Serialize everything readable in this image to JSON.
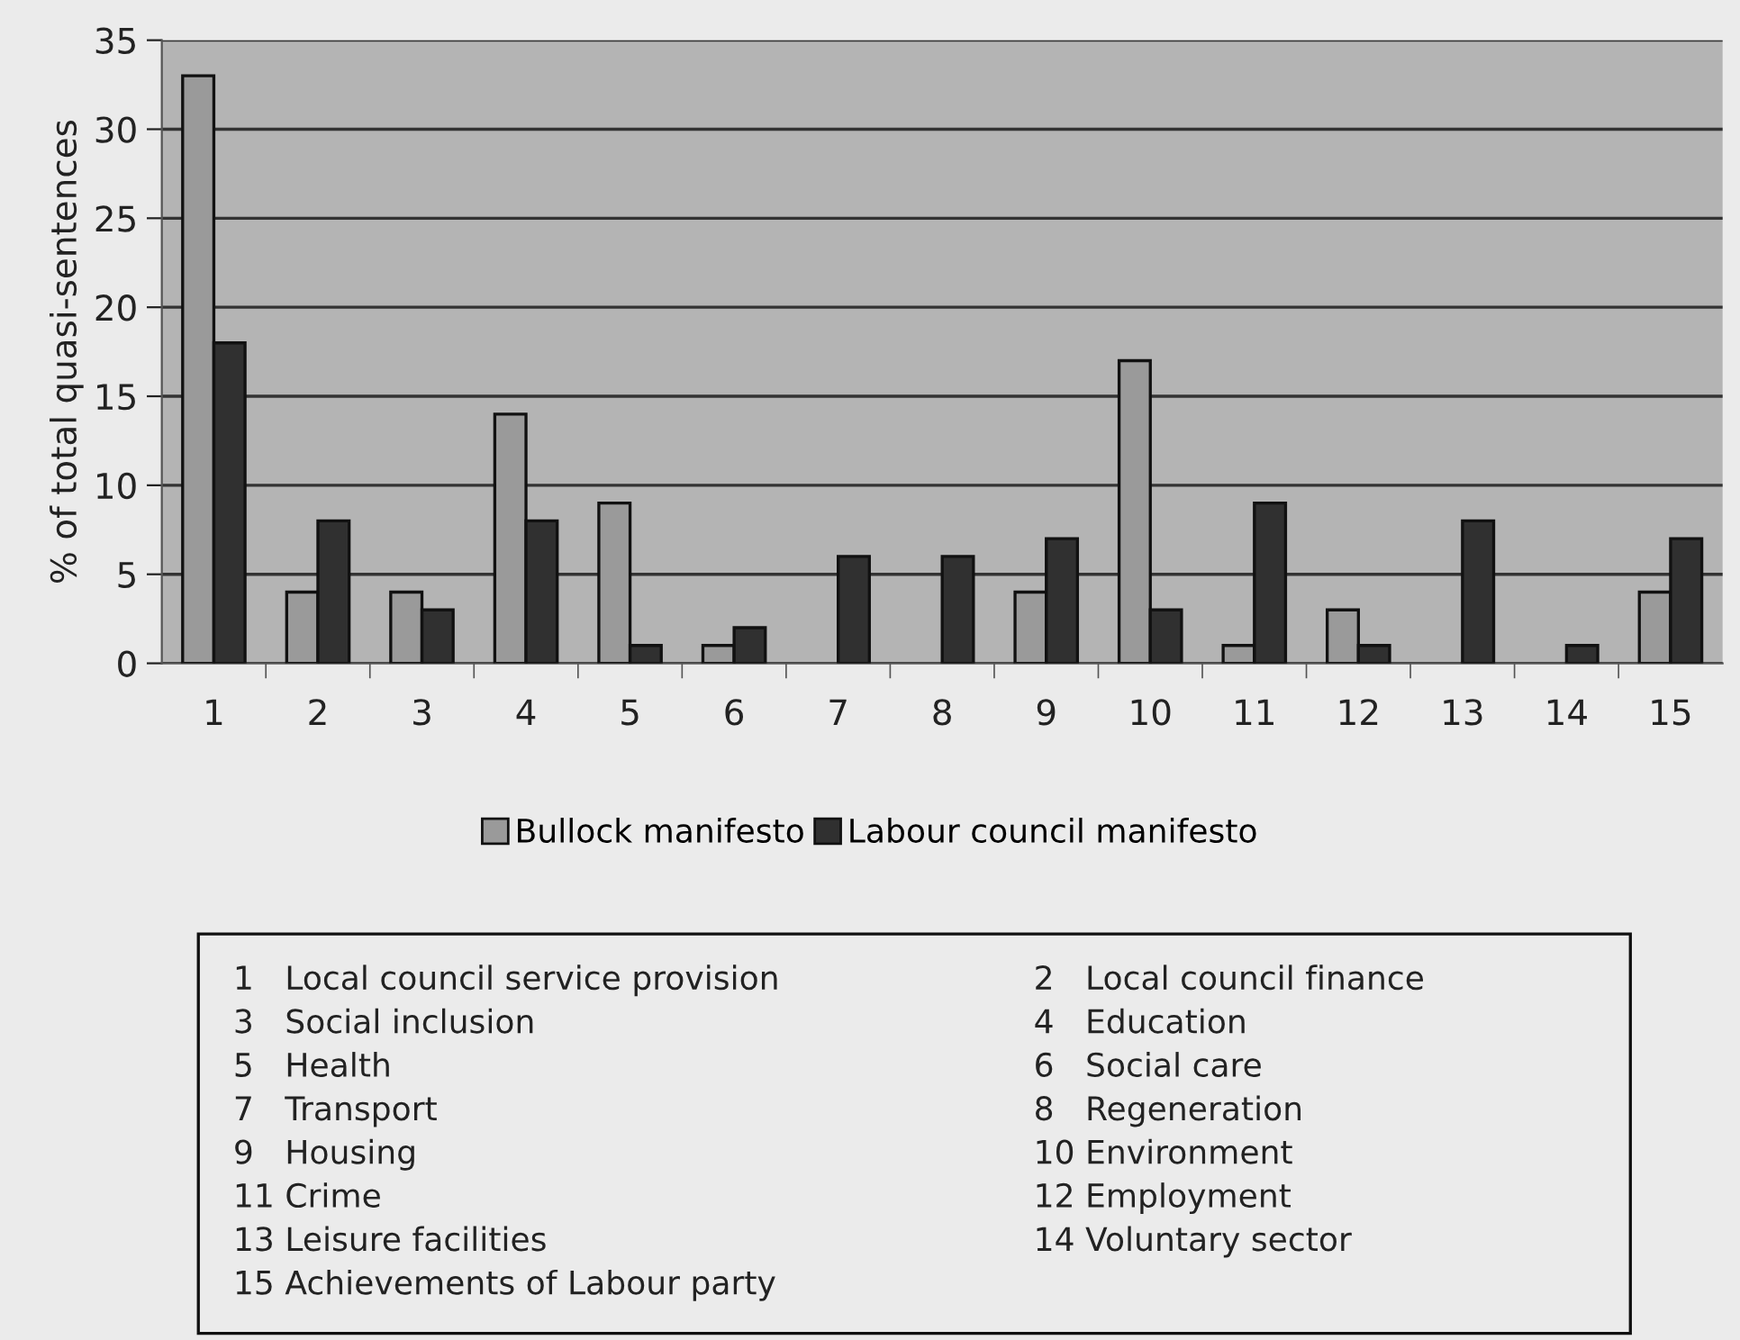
{
  "chart_data": {
    "type": "bar",
    "ylabel": "% of total quasi-sentences",
    "categories": [
      "1",
      "2",
      "3",
      "4",
      "5",
      "6",
      "7",
      "8",
      "9",
      "10",
      "11",
      "12",
      "13",
      "14",
      "15"
    ],
    "series": [
      {
        "name": "Bullock manifesto",
        "color": "#9a9a9a",
        "values": [
          33,
          4,
          4,
          14,
          9,
          1,
          0,
          0,
          4,
          17,
          1,
          3,
          0,
          0,
          4
        ]
      },
      {
        "name": "Labour council manifesto",
        "color": "#303030",
        "values": [
          18,
          8,
          3,
          8,
          1,
          2,
          6,
          6,
          7,
          3,
          9,
          1,
          8,
          1,
          7
        ]
      }
    ],
    "ylim": [
      0,
      35
    ],
    "yticks": [
      0,
      5,
      10,
      15,
      20,
      25,
      30,
      35
    ],
    "grid": "y",
    "legend": "bottom",
    "annotations": [
      "1   Local council service provision",
      "2   Local council finance",
      "3   Social inclusion",
      "4   Education",
      "5   Health",
      "6   Social care",
      "7   Transport",
      "8   Regeneration",
      "9   Housing",
      "10 Environment",
      "11 Crime",
      "12 Employment",
      "13 Leisure facilities",
      "14 Voluntary sector",
      "15 Achievements of Labour party"
    ]
  }
}
